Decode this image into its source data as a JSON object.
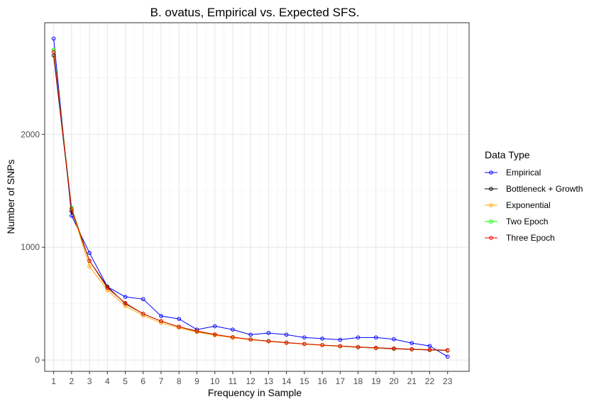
{
  "chart_data": {
    "type": "line",
    "title": "B. ovatus, Empirical vs. Expected SFS.",
    "xlabel": "Frequency in Sample",
    "ylabel": "Number of SNPs",
    "x": [
      1,
      2,
      3,
      4,
      5,
      6,
      7,
      8,
      9,
      10,
      11,
      12,
      13,
      14,
      15,
      16,
      17,
      18,
      19,
      20,
      21,
      22,
      23
    ],
    "x_tick_labels": [
      "1",
      "2",
      "3",
      "4",
      "5",
      "6",
      "7",
      "8",
      "9",
      "10",
      "11",
      "12",
      "13",
      "14",
      "15",
      "16",
      "17",
      "18",
      "19",
      "20",
      "21",
      "22",
      "23"
    ],
    "y_tick_values": [
      0,
      1000,
      2000
    ],
    "y_tick_labels": [
      "0",
      "1000",
      "2000"
    ],
    "xlim": [
      0.5,
      24.2
    ],
    "ylim": [
      -100,
      2990
    ],
    "grid": true,
    "legend": {
      "title": "Data Type",
      "position": "right"
    },
    "series": [
      {
        "name": "Empirical",
        "color": "#0000ff",
        "values": [
          2850,
          1280,
          950,
          650,
          560,
          540,
          390,
          365,
          270,
          300,
          270,
          225,
          240,
          225,
          200,
          190,
          180,
          200,
          200,
          185,
          150,
          125,
          30
        ]
      },
      {
        "name": "Bottleneck + Growth",
        "color": "#000000",
        "values": [
          2700,
          1320,
          880,
          650,
          500,
          410,
          345,
          295,
          255,
          225,
          200,
          182,
          168,
          155,
          142,
          132,
          122,
          113,
          106,
          99,
          94,
          89,
          84
        ]
      },
      {
        "name": "Exponential",
        "color": "#ffa500",
        "values": [
          2750,
          1340,
          830,
          620,
          480,
          395,
          330,
          285,
          248,
          220,
          198,
          180,
          165,
          152,
          141,
          131,
          122,
          114,
          107,
          101,
          96,
          91,
          86
        ]
      },
      {
        "name": "Two Epoch",
        "color": "#00ff00",
        "values": [
          2750,
          1350,
          880,
          640,
          505,
          410,
          345,
          295,
          257,
          227,
          203,
          183,
          167,
          154,
          143,
          133,
          124,
          116,
          109,
          103,
          97,
          92,
          87
        ]
      },
      {
        "name": "Three Epoch",
        "color": "#ff0000",
        "values": [
          2730,
          1340,
          880,
          640,
          505,
          410,
          345,
          295,
          257,
          227,
          203,
          183,
          167,
          154,
          143,
          133,
          124,
          116,
          109,
          103,
          97,
          92,
          88
        ]
      }
    ]
  }
}
